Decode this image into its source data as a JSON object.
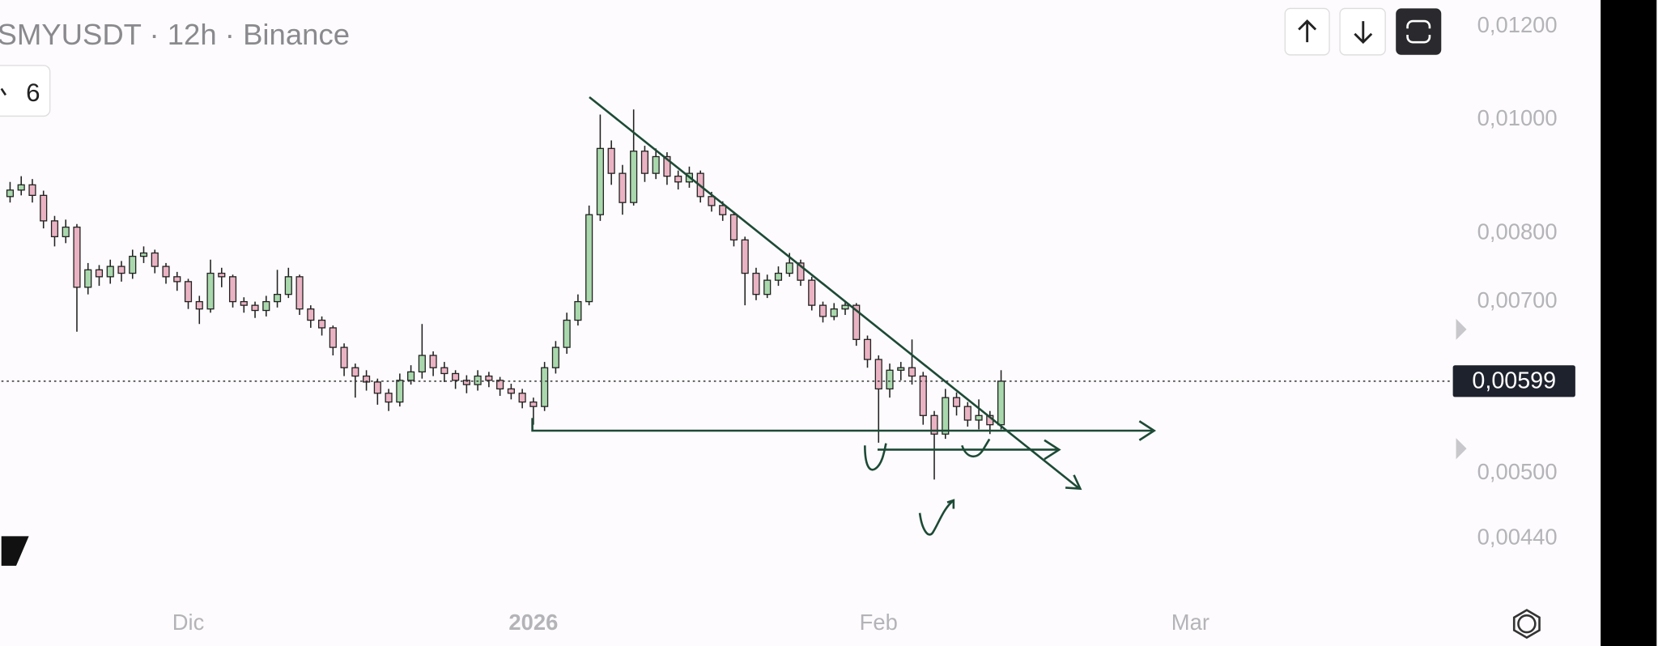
{
  "chart_data": {
    "type": "candlestick",
    "title": "SMYUSDT · 12h · Binance",
    "open": [
      0.0086,
      0.00871,
      0.0088,
      0.00862,
      0.0082,
      0.00795,
      0.0081,
      0.0072,
      0.00745,
      0.00735,
      0.0075,
      0.0074,
      0.00765,
      0.0077,
      0.0075,
      0.00735,
      0.00728,
      0.007,
      0.0069,
      0.0074,
      0.00735,
      0.007,
      0.00695,
      0.00688,
      0.007,
      0.0071,
      0.00735,
      0.0069,
      0.00675,
      0.00665,
      0.0064,
      0.00615,
      0.00605,
      0.00598,
      0.00585,
      0.00575,
      0.006,
      0.0061,
      0.0063,
      0.00615,
      0.00608,
      0.006,
      0.00595,
      0.00605,
      0.006,
      0.0059,
      0.00585,
      0.00575,
      0.0057,
      0.00615,
      0.0064,
      0.00675,
      0.007,
      0.0083,
      0.00945,
      0.009,
      0.0085,
      0.0094,
      0.009,
      0.0093,
      0.00895,
      0.00885,
      0.009,
      0.0086,
      0.00845,
      0.0083,
      0.0079,
      0.0074,
      0.0071,
      0.0073,
      0.0074,
      0.00755,
      0.0073,
      0.00695,
      0.0068,
      0.0069,
      0.00695,
      0.0065,
      0.00625,
      0.0059,
      0.00612,
      0.00615,
      0.00605,
      0.0056,
      0.0054,
      0.0058,
      0.0057,
      0.00555,
      0.0056,
      0.0055
    ],
    "high": [
      0.00885,
      0.00895,
      0.0089,
      0.0087,
      0.00828,
      0.00822,
      0.00815,
      0.00755,
      0.00752,
      0.0076,
      0.00758,
      0.00775,
      0.0078,
      0.00775,
      0.00755,
      0.00742,
      0.00732,
      0.00708,
      0.0076,
      0.00748,
      0.00738,
      0.00706,
      0.007,
      0.00708,
      0.00745,
      0.00748,
      0.00738,
      0.00695,
      0.0068,
      0.00668,
      0.00645,
      0.0062,
      0.00612,
      0.00602,
      0.0059,
      0.00608,
      0.00618,
      0.0067,
      0.00635,
      0.00622,
      0.00612,
      0.00606,
      0.00612,
      0.0061,
      0.00604,
      0.00596,
      0.0059,
      0.0058,
      0.00622,
      0.00648,
      0.00685,
      0.0071,
      0.00845,
      0.0101,
      0.0096,
      0.00915,
      0.0102,
      0.0095,
      0.00945,
      0.00938,
      0.00905,
      0.00912,
      0.00905,
      0.00868,
      0.00852,
      0.00835,
      0.00795,
      0.00748,
      0.00738,
      0.0075,
      0.0077,
      0.0076,
      0.00735,
      0.007,
      0.00698,
      0.007,
      0.00698,
      0.00655,
      0.0063,
      0.0062,
      0.00622,
      0.0065,
      0.0061,
      0.00565,
      0.0059,
      0.00586,
      0.00575,
      0.00578,
      0.00565,
      0.00612
    ],
    "low": [
      0.0085,
      0.00862,
      0.0085,
      0.00808,
      0.0078,
      0.00785,
      0.0066,
      0.0071,
      0.00722,
      0.00725,
      0.00728,
      0.00732,
      0.00755,
      0.0074,
      0.00725,
      0.00715,
      0.0069,
      0.0067,
      0.00685,
      0.0072,
      0.00692,
      0.00685,
      0.00678,
      0.0068,
      0.00692,
      0.00705,
      0.00682,
      0.00665,
      0.00655,
      0.0063,
      0.00605,
      0.0058,
      0.00588,
      0.00572,
      0.00565,
      0.0057,
      0.00595,
      0.00602,
      0.00605,
      0.00598,
      0.0059,
      0.00585,
      0.00588,
      0.00592,
      0.00582,
      0.00578,
      0.00568,
      0.0055,
      0.00565,
      0.00608,
      0.00632,
      0.00668,
      0.00695,
      0.0082,
      0.0088,
      0.0083,
      0.00845,
      0.00885,
      0.0089,
      0.0088,
      0.00872,
      0.00875,
      0.0085,
      0.00835,
      0.0082,
      0.0078,
      0.00695,
      0.00702,
      0.00705,
      0.00722,
      0.00735,
      0.00722,
      0.00688,
      0.00672,
      0.00675,
      0.00682,
      0.00642,
      0.00615,
      0.00531,
      0.0058,
      0.006,
      0.00595,
      0.0055,
      0.00494,
      0.00535,
      0.0056,
      0.00548,
      0.00545,
      0.0054,
      0.00545
    ],
    "close": [
      0.00871,
      0.0088,
      0.00862,
      0.0082,
      0.00795,
      0.0081,
      0.0072,
      0.00745,
      0.00735,
      0.0075,
      0.0074,
      0.00765,
      0.0077,
      0.0075,
      0.00735,
      0.00728,
      0.007,
      0.0069,
      0.0074,
      0.00735,
      0.007,
      0.00695,
      0.00688,
      0.007,
      0.0071,
      0.00735,
      0.0069,
      0.00675,
      0.00665,
      0.0064,
      0.00615,
      0.00605,
      0.00598,
      0.00585,
      0.00575,
      0.006,
      0.0061,
      0.0063,
      0.00615,
      0.00608,
      0.006,
      0.00595,
      0.00605,
      0.006,
      0.0059,
      0.00585,
      0.00575,
      0.0057,
      0.00615,
      0.0064,
      0.00675,
      0.007,
      0.0083,
      0.00945,
      0.009,
      0.0085,
      0.0094,
      0.009,
      0.0093,
      0.00895,
      0.00885,
      0.009,
      0.0086,
      0.00845,
      0.0083,
      0.0079,
      0.0074,
      0.0071,
      0.0073,
      0.0074,
      0.00755,
      0.0073,
      0.00695,
      0.0068,
      0.0069,
      0.00695,
      0.0065,
      0.00625,
      0.0059,
      0.00612,
      0.00615,
      0.00605,
      0.0056,
      0.0054,
      0.0058,
      0.0057,
      0.00555,
      0.0056,
      0.0055,
      0.00599
    ],
    "up_color": "#a9d8ad",
    "down_color": "#eab3c3",
    "xlim": [
      -0.78,
      129.1
    ],
    "xticks": [
      {
        "value": 16,
        "label": "Dic"
      },
      {
        "value": 47,
        "label": "2026"
      },
      {
        "value": 78,
        "label": "Feb"
      },
      {
        "value": 106,
        "label": "Mar"
      }
    ],
    "ylim": [
      0.00397,
      0.01264
    ],
    "log_scale": true,
    "yticks": [
      {
        "value": 0.012,
        "label": "0,01200"
      },
      {
        "value": 0.01,
        "label": "0,01000"
      },
      {
        "value": 0.008,
        "label": "0,00800"
      },
      {
        "value": 0.007,
        "label": "0,00700"
      },
      {
        "value": 0.005,
        "label": "0,00500"
      },
      {
        "value": 0.0044,
        "label": "0,00440"
      }
    ],
    "last_price_label": "0,00599"
  },
  "toolbar": {
    "indicator_count": "6"
  }
}
